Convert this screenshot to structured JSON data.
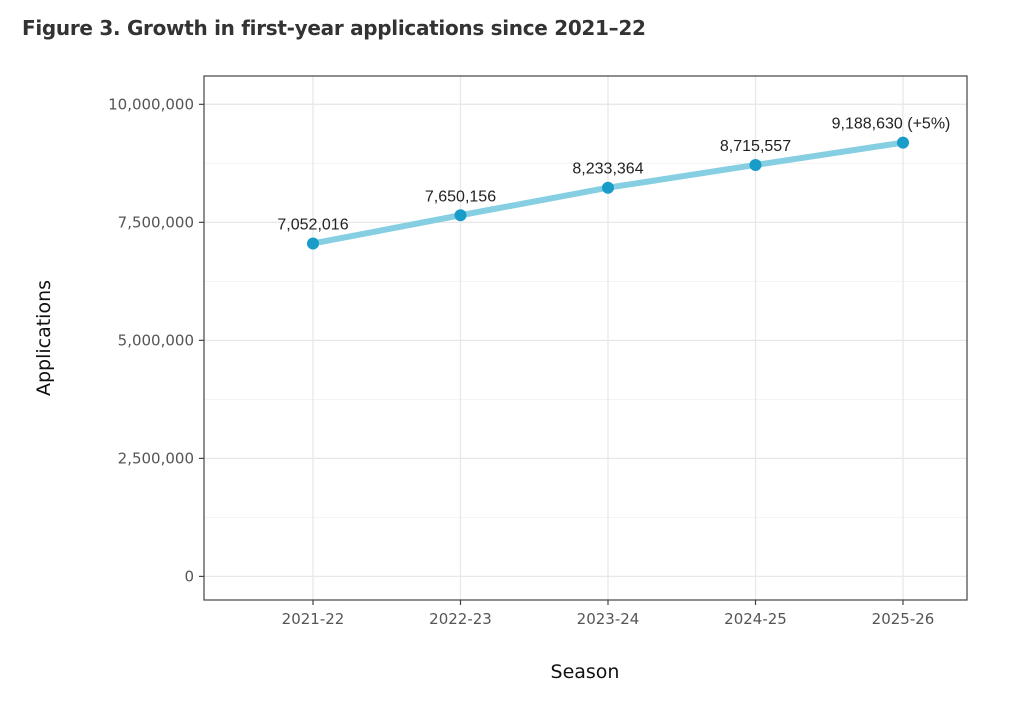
{
  "chart_data": {
    "type": "line",
    "title": "Figure 3. Growth in first-year applications since 2021–22",
    "xlabel": "Season",
    "ylabel": "Applications",
    "categories": [
      "2021-22",
      "2022-23",
      "2023-24",
      "2024-25",
      "2025-26"
    ],
    "values": [
      7052016,
      7650156,
      8233364,
      8715557,
      9188630
    ],
    "data_labels": [
      "7,052,016",
      "7,650,156",
      "8,233,364",
      "8,715,557",
      "9,188,630 (+5%)"
    ],
    "yticks": [
      0,
      2500000,
      5000000,
      7500000,
      10000000
    ],
    "ytick_labels": [
      "0",
      "2,500,000",
      "5,000,000",
      "7,500,000",
      "10,000,000"
    ],
    "ylim": [
      -500000,
      10600000
    ],
    "grid": true,
    "colors": {
      "line": "#86cfe3",
      "point": "#1a9cc9"
    }
  }
}
